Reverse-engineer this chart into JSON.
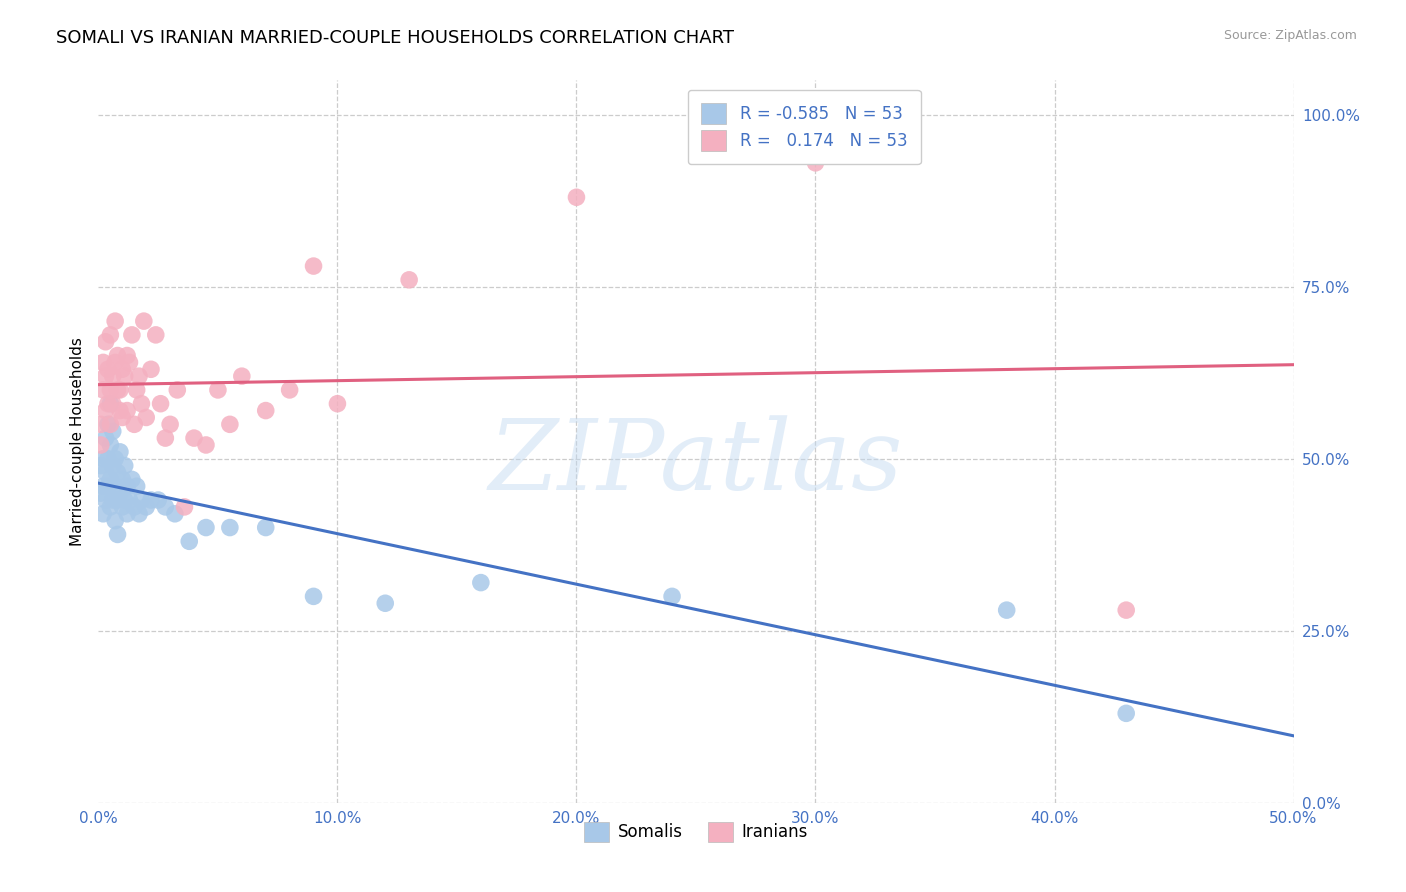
{
  "title": "SOMALI VS IRANIAN MARRIED-COUPLE HOUSEHOLDS CORRELATION CHART",
  "source": "Source: ZipAtlas.com",
  "ylabel": "Married-couple Households",
  "xmin": 0.0,
  "xmax": 0.5,
  "ymin": 0.0,
  "ymax": 1.05,
  "xticks": [
    0.0,
    0.1,
    0.2,
    0.3,
    0.4,
    0.5
  ],
  "xtick_labels": [
    "0.0%",
    "10.0%",
    "20.0%",
    "30.0%",
    "40.0%",
    "50.0%"
  ],
  "yticks_right": [
    0.0,
    0.25,
    0.5,
    0.75,
    1.0
  ],
  "ytick_labels_right": [
    "0.0%",
    "25.0%",
    "50.0%",
    "75.0%",
    "100.0%"
  ],
  "grid_color": "#cccccc",
  "background_color": "#ffffff",
  "watermark_text": "ZIPatlas",
  "legend_r_somali": "-0.585",
  "legend_r_iranian": "0.174",
  "legend_n": "53",
  "somali_color": "#a8c8e8",
  "somali_line_color": "#4472c4",
  "iranian_color": "#f4b0c0",
  "iranian_line_color": "#e06080",
  "title_fontsize": 13,
  "label_fontsize": 11,
  "tick_fontsize": 11,
  "legend_fontsize": 12,
  "axis_color": "#4472c4",
  "somali_x": [
    0.001,
    0.001,
    0.002,
    0.002,
    0.002,
    0.003,
    0.003,
    0.003,
    0.004,
    0.004,
    0.004,
    0.005,
    0.005,
    0.005,
    0.005,
    0.006,
    0.006,
    0.006,
    0.007,
    0.007,
    0.007,
    0.008,
    0.008,
    0.008,
    0.009,
    0.009,
    0.01,
    0.01,
    0.011,
    0.011,
    0.012,
    0.012,
    0.013,
    0.014,
    0.015,
    0.016,
    0.017,
    0.018,
    0.02,
    0.022,
    0.025,
    0.028,
    0.032,
    0.038,
    0.045,
    0.055,
    0.07,
    0.09,
    0.12,
    0.16,
    0.24,
    0.38,
    0.43
  ],
  "somali_y": [
    0.49,
    0.45,
    0.5,
    0.46,
    0.42,
    0.53,
    0.48,
    0.44,
    0.55,
    0.5,
    0.46,
    0.52,
    0.58,
    0.47,
    0.43,
    0.54,
    0.49,
    0.44,
    0.5,
    0.46,
    0.41,
    0.48,
    0.44,
    0.39,
    0.45,
    0.51,
    0.47,
    0.43,
    0.49,
    0.44,
    0.46,
    0.42,
    0.44,
    0.47,
    0.43,
    0.46,
    0.42,
    0.44,
    0.43,
    0.44,
    0.44,
    0.43,
    0.42,
    0.38,
    0.4,
    0.4,
    0.4,
    0.3,
    0.29,
    0.32,
    0.3,
    0.28,
    0.13
  ],
  "iranian_x": [
    0.001,
    0.001,
    0.002,
    0.002,
    0.003,
    0.003,
    0.003,
    0.004,
    0.004,
    0.005,
    0.005,
    0.005,
    0.006,
    0.006,
    0.007,
    0.007,
    0.008,
    0.008,
    0.009,
    0.009,
    0.01,
    0.01,
    0.011,
    0.012,
    0.012,
    0.013,
    0.014,
    0.015,
    0.016,
    0.017,
    0.018,
    0.019,
    0.02,
    0.022,
    0.024,
    0.026,
    0.028,
    0.03,
    0.033,
    0.036,
    0.04,
    0.045,
    0.05,
    0.055,
    0.06,
    0.07,
    0.08,
    0.09,
    0.1,
    0.13,
    0.2,
    0.3,
    0.43
  ],
  "iranian_y": [
    0.52,
    0.55,
    0.6,
    0.64,
    0.57,
    0.62,
    0.67,
    0.58,
    0.63,
    0.55,
    0.6,
    0.68,
    0.62,
    0.58,
    0.64,
    0.7,
    0.6,
    0.65,
    0.6,
    0.57,
    0.63,
    0.56,
    0.62,
    0.65,
    0.57,
    0.64,
    0.68,
    0.55,
    0.6,
    0.62,
    0.58,
    0.7,
    0.56,
    0.63,
    0.68,
    0.58,
    0.53,
    0.55,
    0.6,
    0.43,
    0.53,
    0.52,
    0.6,
    0.55,
    0.62,
    0.57,
    0.6,
    0.78,
    0.58,
    0.76,
    0.88,
    0.93,
    0.28
  ]
}
